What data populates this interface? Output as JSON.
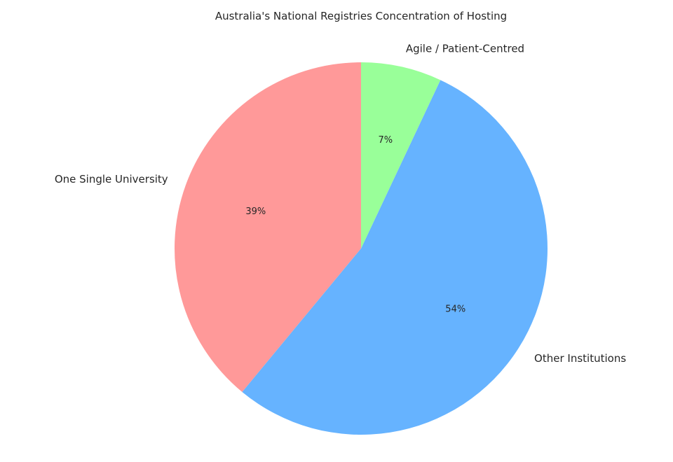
{
  "chart_data": {
    "type": "pie",
    "title": "Australia's National Registries Concentration of Hosting",
    "labels": [
      "One Single University",
      "Other Institutions",
      "Agile / Patient-Centred"
    ],
    "values": [
      39,
      54,
      7
    ],
    "value_labels": [
      "39%",
      "54%",
      "7%"
    ],
    "colors": [
      "#ff9999",
      "#66b3ff",
      "#99ff99"
    ],
    "start_angle": 90,
    "direction": "counterclockwise"
  }
}
